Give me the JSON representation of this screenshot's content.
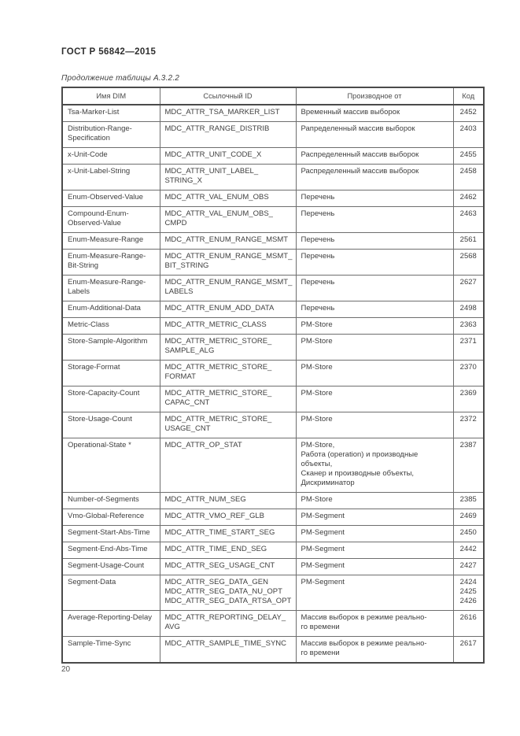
{
  "page": {
    "doc_number": "ГОСТ Р 56842—2015",
    "table_caption": "Продолжение таблицы А.3.2.2",
    "page_number": "20"
  },
  "colors": {
    "ink": "#3f3f3f",
    "border": "#6e6e6e",
    "border-strong": "#4a4a4a",
    "paper": "#ffffff"
  },
  "table": {
    "columns": [
      "Имя DIM",
      "Ссылочный ID",
      "Производное от",
      "Код"
    ],
    "rows": [
      {
        "name": "Tsa-Marker-List",
        "ref": "MDC_ATTR_TSA_MARKER_LIST",
        "derived": "Временный массив выборок",
        "code": "2452"
      },
      {
        "name": "Distribution-Range-\nSpecification",
        "ref": "MDC_ATTR_RANGE_DISTRIB",
        "derived": "Рапределенный массив выборок",
        "code": "2403"
      },
      {
        "name": "x-Unit-Code",
        "ref": "MDC_ATTR_UNIT_CODE_X",
        "derived": "Распределенный массив выборок",
        "code": "2455"
      },
      {
        "name": "x-Unit-Label-String",
        "ref": "MDC_ATTR_UNIT_LABEL_\nSTRING_X",
        "derived": "Распределенный массив выборок",
        "code": "2458"
      },
      {
        "name": "Enum-Observed-Value",
        "ref": "MDC_ATTR_VAL_ENUM_OBS",
        "derived": "Перечень",
        "code": "2462"
      },
      {
        "name": "Compound-Enum-\nObserved-Value",
        "ref": "MDC_ATTR_VAL_ENUM_OBS_\nCMPD",
        "derived": "Перечень",
        "code": "2463"
      },
      {
        "name": "Enum-Measure-Range",
        "ref": "MDC_ATTR_ENUM_RANGE_MSMT",
        "derived": "Перечень",
        "code": "2561"
      },
      {
        "name": "Enum-Measure-Range-\nBit-String",
        "ref": "MDC_ATTR_ENUM_RANGE_MSMT_\nBIT_STRING",
        "derived": "Перечень",
        "code": "2568"
      },
      {
        "name": "Enum-Measure-Range-\nLabels",
        "ref": "MDC_ATTR_ENUM_RANGE_MSMT_\nLABELS",
        "derived": "Перечень",
        "code": "2627"
      },
      {
        "name": "Enum-Additional-Data",
        "ref": "MDC_ATTR_ENUM_ADD_DATA",
        "derived": "Перечень",
        "code": "2498"
      },
      {
        "name": "Metric-Class",
        "ref": "MDC_ATTR_METRIC_CLASS",
        "derived": "PM-Store",
        "code": "2363"
      },
      {
        "name": "Store-Sample-Algorithm",
        "ref": "MDC_ATTR_METRIC_STORE_\nSAMPLE_ALG",
        "derived": "PM-Store",
        "code": "2371"
      },
      {
        "name": "Storage-Format",
        "ref": "MDC_ATTR_METRIC_STORE_\nFORMAT",
        "derived": "PM-Store",
        "code": "2370"
      },
      {
        "name": "Store-Capacity-Count",
        "ref": "MDC_ATTR_METRIC_STORE_\nCAPAC_CNT",
        "derived": "PM-Store",
        "code": "2369"
      },
      {
        "name": "Store-Usage-Count",
        "ref": "MDC_ATTR_METRIC_STORE_\nUSAGE_CNT",
        "derived": "PM-Store",
        "code": "2372"
      },
      {
        "name": "Operational-State *",
        "ref": "MDC_ATTR_OP_STAT",
        "derived": "PM-Store,\nРабота (operation) и производные объекты,\nСканер и производные объекты,\nДискриминатор",
        "code": "2387"
      },
      {
        "name": "Number-of-Segments",
        "ref": "MDC_ATTR_NUM_SEG",
        "derived": "PM-Store",
        "code": "2385"
      },
      {
        "name": "Vmo-Global-Reference",
        "ref": "MDC_ATTR_VMO_REF_GLB",
        "derived": "PM-Segment",
        "code": "2469"
      },
      {
        "name": "Segment-Start-Abs-Time",
        "ref": "MDC_ATTR_TIME_START_SEG",
        "derived": "PM-Segment",
        "code": "2450"
      },
      {
        "name": "Segment-End-Abs-Time",
        "ref": "MDC_ATTR_TIME_END_SEG",
        "derived": "PM-Segment",
        "code": "2442"
      },
      {
        "name": "Segment-Usage-Count",
        "ref": "MDC_ATTR_SEG_USAGE_CNT",
        "derived": "PM-Segment",
        "code": "2427"
      },
      {
        "name": "Segment-Data",
        "ref": "MDC_ATTR_SEG_DATA_GEN\nMDC_ATTR_SEG_DATA_NU_OPT\nMDC_ATTR_SEG_DATA_RTSA_OPT",
        "derived": "PM-Segment",
        "code": "2424\n2425\n2426"
      },
      {
        "name": "Average-Reporting-Delay",
        "ref": "MDC_ATTR_REPORTING_DELAY_\nAVG",
        "derived": "Массив выборок в режиме реально-\nго времени",
        "code": "2616"
      },
      {
        "name": "Sample-Time-Sync",
        "ref": "MDC_ATTR_SAMPLE_TIME_SYNC",
        "derived": "Массив выборок в режиме реально-\nго времени",
        "code": "2617"
      }
    ]
  }
}
